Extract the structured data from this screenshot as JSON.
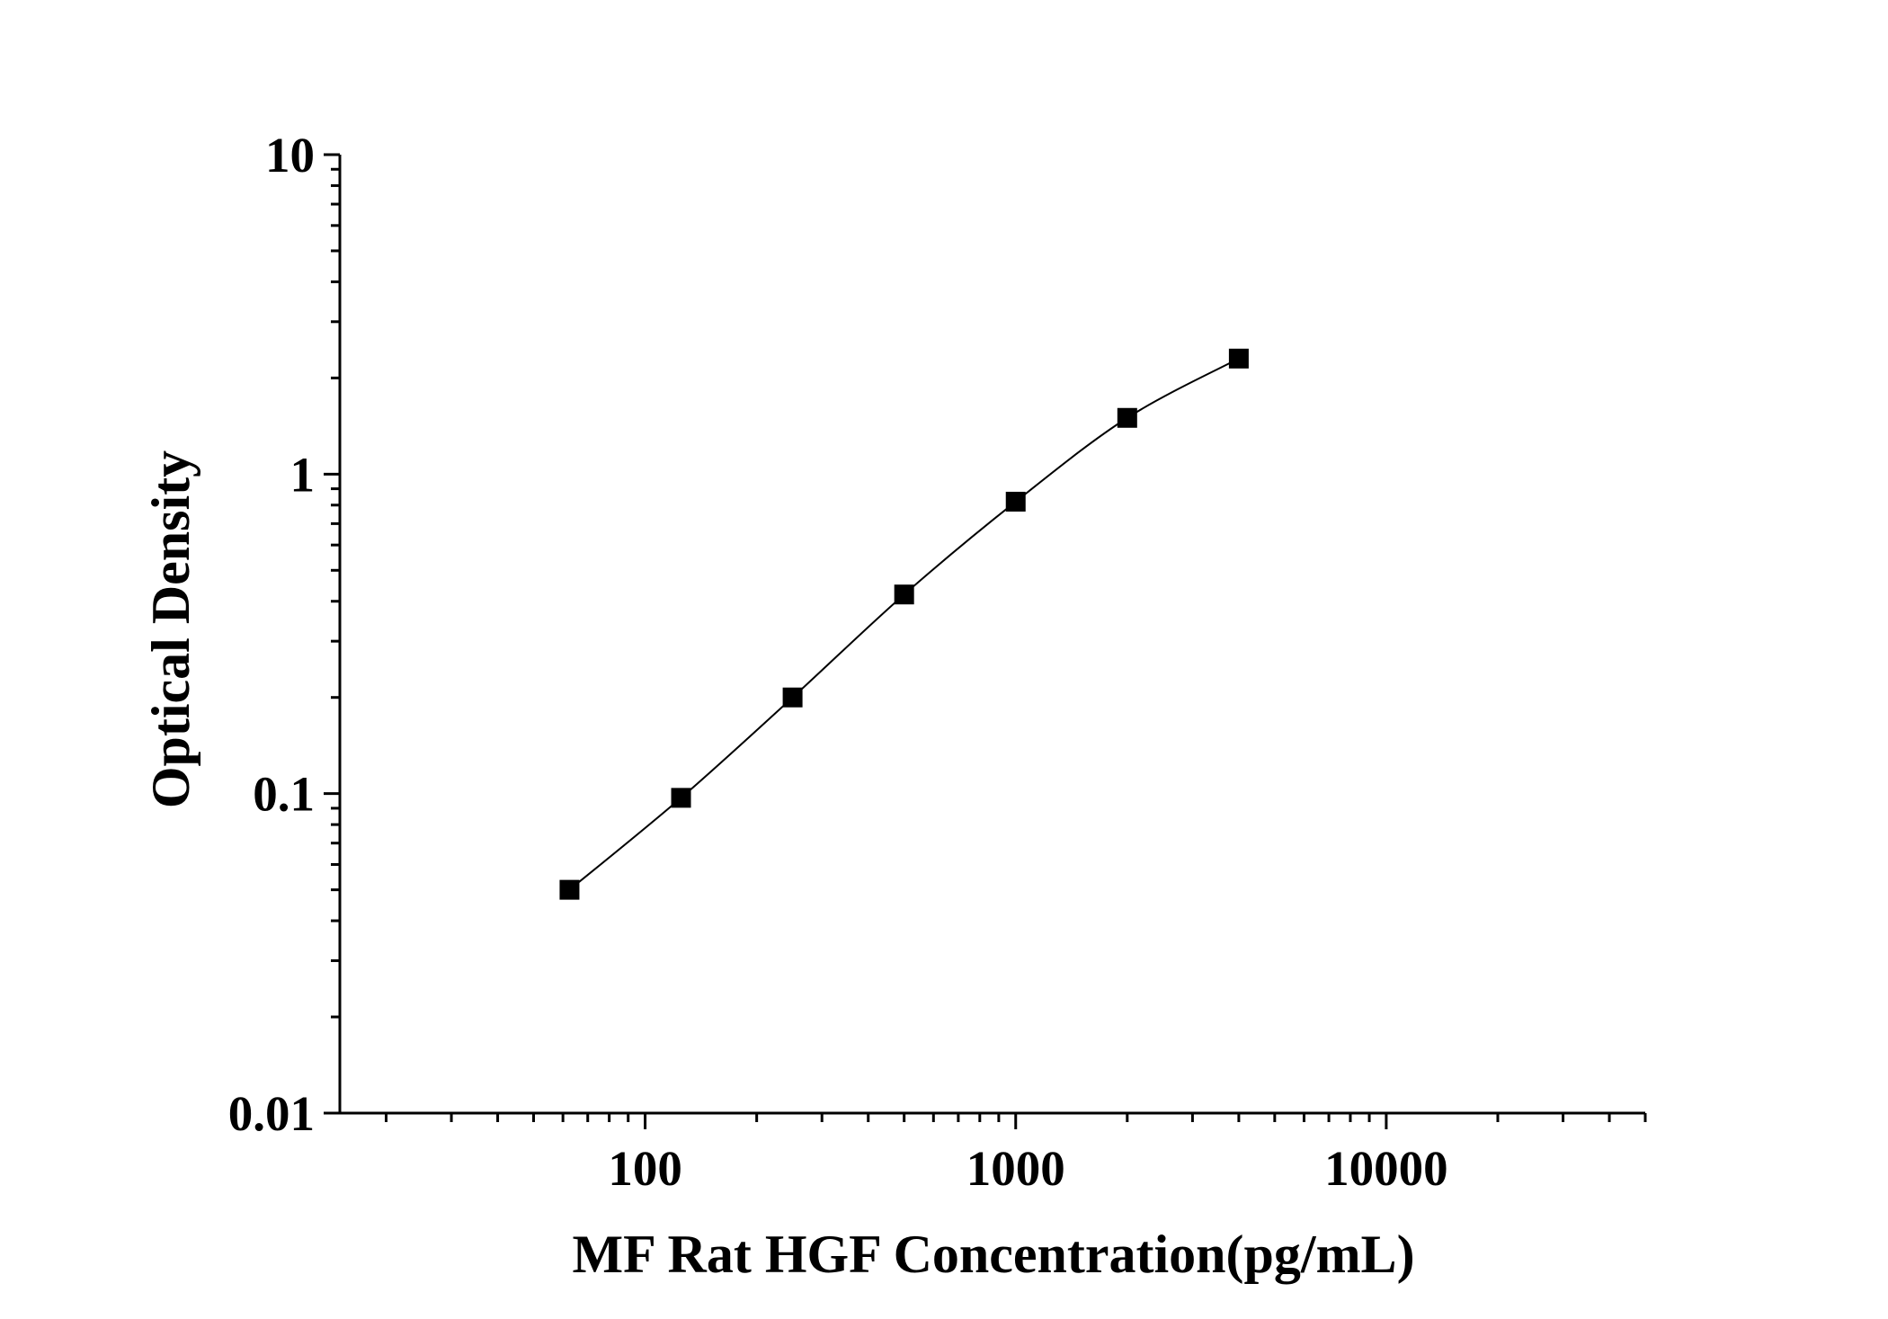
{
  "chart_data": {
    "type": "scatter",
    "title": "",
    "xlabel": "MF Rat HGF Concentration(pg/mL)",
    "ylabel": "Optical Density",
    "x_scale": "log",
    "y_scale": "log",
    "xlim": [
      15,
      50000
    ],
    "ylim": [
      0.01,
      10
    ],
    "x_ticks": [
      100,
      1000,
      10000
    ],
    "x_tick_labels": [
      "100",
      "1000",
      "10000"
    ],
    "y_ticks": [
      0.01,
      0.1,
      1,
      10
    ],
    "y_tick_labels": [
      "0.01",
      "0.1",
      "1",
      "10"
    ],
    "grid": false,
    "legend": "none",
    "marker": "square",
    "fit_curve": true,
    "series": [
      {
        "x": [
          62.5,
          125,
          250,
          500,
          1000,
          2000,
          4000
        ],
        "y": [
          0.05,
          0.097,
          0.2,
          0.42,
          0.82,
          1.5,
          2.3
        ]
      }
    ],
    "colors": {
      "axis": "#000000",
      "marker": "#000000",
      "curve": "#000000"
    }
  }
}
